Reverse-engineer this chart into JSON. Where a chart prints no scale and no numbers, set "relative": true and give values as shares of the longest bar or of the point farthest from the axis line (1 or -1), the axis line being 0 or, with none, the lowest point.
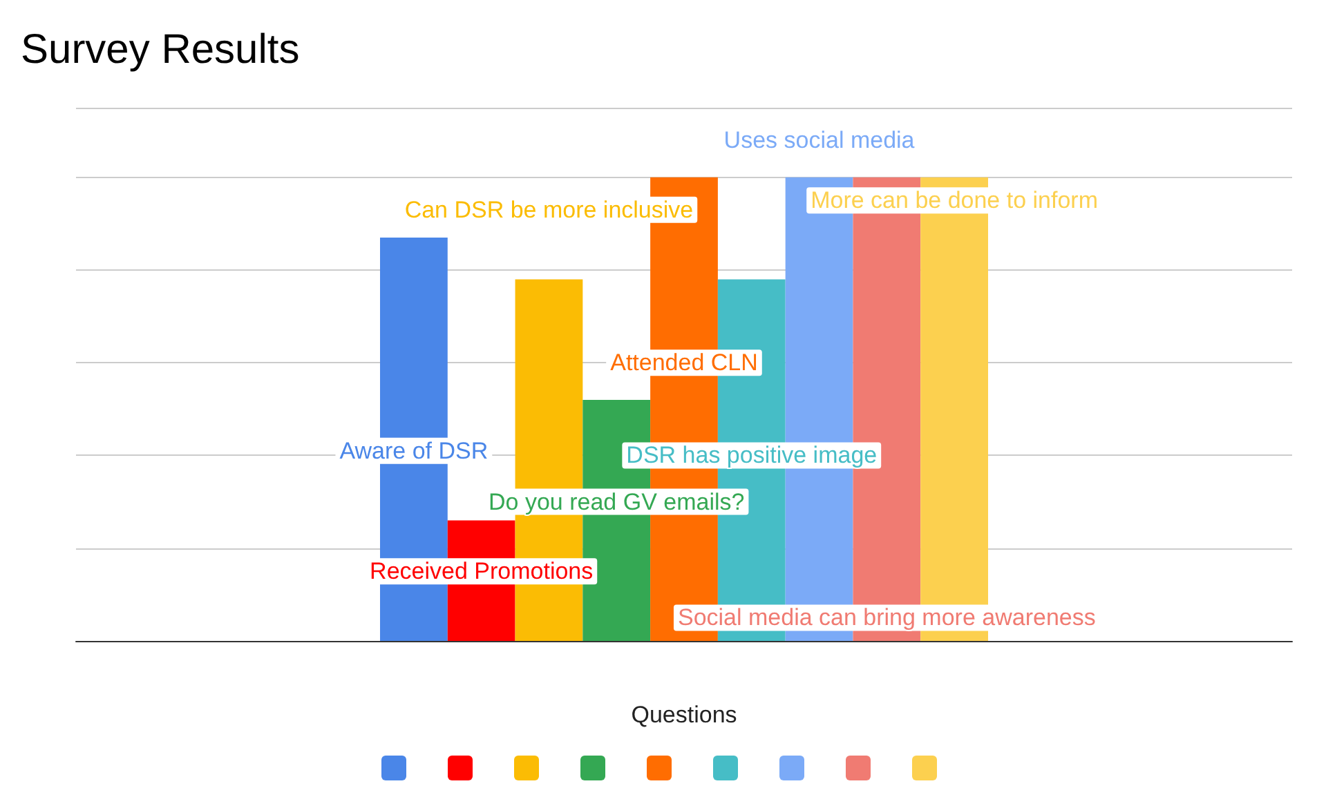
{
  "chart_data": {
    "type": "bar",
    "title": "Survey Results",
    "xlabel": "Questions",
    "categories": [
      null
    ],
    "relative": true,
    "grid": "y",
    "series": [
      {
        "name": "Aware of DSR",
        "color": "#4a86e8",
        "values": [
          0.87
        ]
      },
      {
        "name": "Received Promotions",
        "color": "#ff0000",
        "values": [
          0.26
        ]
      },
      {
        "name": "Can DSR be more inclusive",
        "color": "#fbbc04",
        "values": [
          0.78
        ]
      },
      {
        "name": "Do you read GV emails?",
        "color": "#34a853",
        "values": [
          0.52
        ]
      },
      {
        "name": "Attended CLN",
        "color": "#ff6d01",
        "values": [
          1
        ]
      },
      {
        "name": "DSR has positive image",
        "color": "#46bdc6",
        "values": [
          0.78
        ]
      },
      {
        "name": "Uses social media",
        "color": "#7baaf7",
        "values": [
          1
        ]
      },
      {
        "name": "Social media can bring more awareness",
        "color": "#f07b72",
        "values": [
          1
        ]
      },
      {
        "name": "More can be done to inform",
        "color": "#fcd04f",
        "values": [
          1
        ]
      }
    ]
  }
}
